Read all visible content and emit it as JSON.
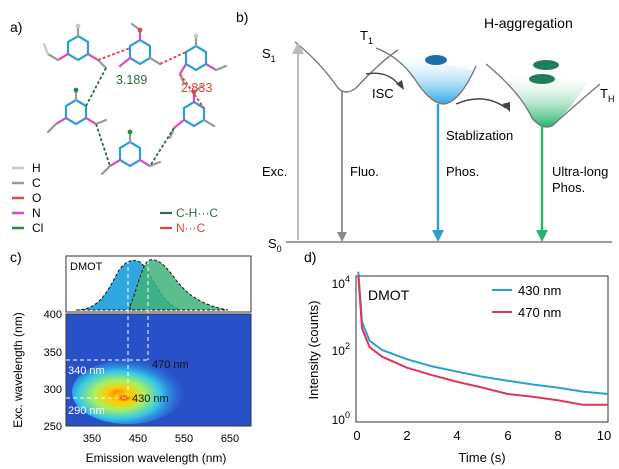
{
  "figure": {
    "panel_a": {
      "label": "a)",
      "distances": [
        "3.189",
        "2.833"
      ],
      "atom_legend": [
        {
          "symbol": "H",
          "color": "#c8c8c8"
        },
        {
          "symbol": "C",
          "color": "#9a9a9a"
        },
        {
          "symbol": "O",
          "color": "#d24d4d"
        },
        {
          "symbol": "N",
          "color": "#d24fc0"
        },
        {
          "symbol": "Cl",
          "color": "#2b8a4b"
        }
      ],
      "bond_legend": [
        {
          "label": "C-H···C",
          "color": "#2f6b3f"
        },
        {
          "label": "N···C",
          "color": "#e0443c"
        }
      ]
    },
    "panel_b": {
      "label": "b)",
      "title": "H-aggregation",
      "states": {
        "s1": "S1",
        "t1": "T1",
        "s0": "S0",
        "th": "TH"
      },
      "process_labels": {
        "exc": "Exc.",
        "fluo": "Fluo.",
        "isc": "ISC",
        "stab": "Stablization",
        "phos": "Phos.",
        "ultra1": "Ultra-long",
        "ultra2": "Phos."
      }
    },
    "panel_c": {
      "label": "c)",
      "sample": "DMOT",
      "xlabel": "Emission wavelength (nm)",
      "ylabel": "Exc. wavelength (nm)",
      "x_ticks": [
        "350",
        "450",
        "550",
        "650"
      ],
      "y_ticks": [
        "400",
        "350",
        "300",
        "250"
      ],
      "annotations": [
        "470 nm",
        "340 nm",
        "430 nm",
        "290 nm"
      ]
    },
    "panel_d": {
      "label": "d)",
      "sample": "DMOT",
      "xlabel": "Time (s)",
      "ylabel": "Intensity (counts)",
      "x_ticks": [
        "0",
        "2",
        "4",
        "6",
        "8",
        "10"
      ],
      "y_ticks": [
        "10",
        "10",
        "10"
      ],
      "y_tick_exps": [
        "4",
        "2",
        "0"
      ],
      "legend": [
        {
          "label": "430 nm",
          "color": "#2b9fd3"
        },
        {
          "label": "470 nm",
          "color": "#e0345c"
        }
      ]
    }
  },
  "chart_data": [
    {
      "type": "heatmap",
      "title": "DMOT",
      "xlabel": "Emission wavelength (nm)",
      "ylabel": "Exc. wavelength (nm)",
      "xlim": [
        300,
        700
      ],
      "ylim": [
        250,
        400
      ],
      "peak": {
        "x": 430,
        "y": 290
      },
      "excitation_spectrum_peaks_nm": [
        340,
        290
      ],
      "emission_spectrum_peaks_nm": [
        430,
        470
      ]
    },
    {
      "type": "line",
      "title": "DMOT",
      "xlabel": "Time (s)",
      "ylabel": "Intensity (counts)",
      "xlim": [
        0,
        10
      ],
      "ylim_log10": [
        0,
        4
      ],
      "y_scale": "log",
      "series": [
        {
          "name": "430 nm",
          "x": [
            0.05,
            0.2,
            0.5,
            1,
            2,
            3,
            4,
            5,
            6,
            7,
            8,
            9,
            10
          ],
          "values": [
            15000,
            600,
            180,
            100,
            55,
            35,
            25,
            18,
            14,
            11,
            9,
            7,
            6
          ]
        },
        {
          "name": "470 nm",
          "x": [
            0.05,
            0.2,
            0.5,
            1,
            2,
            3,
            4,
            5,
            6,
            7,
            8,
            9,
            10
          ],
          "values": [
            12000,
            400,
            120,
            65,
            32,
            20,
            13,
            9,
            6,
            5,
            4,
            3,
            3
          ]
        }
      ]
    }
  ]
}
